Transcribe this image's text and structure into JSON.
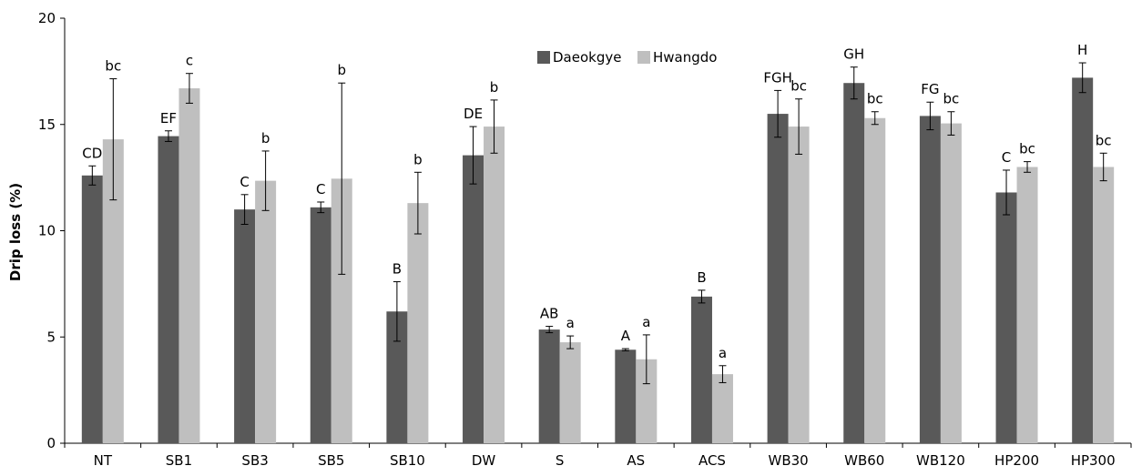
{
  "chart_data": {
    "type": "bar",
    "title": "",
    "xlabel": "",
    "ylabel": "Drip loss (%)",
    "ylim": [
      0,
      20
    ],
    "yticks": [
      0,
      5,
      10,
      15,
      20
    ],
    "grid": false,
    "legend_position": "top-center",
    "categories": [
      "NT",
      "SB1",
      "SB3",
      "SB5",
      "SB10",
      "DW",
      "S",
      "AS",
      "ACS",
      "WB30",
      "WB60",
      "WB120",
      "HP200",
      "HP300"
    ],
    "series": [
      {
        "name": "Daeokgye",
        "color": "#595959",
        "values": [
          12.6,
          14.45,
          11.0,
          11.1,
          6.2,
          13.55,
          5.35,
          4.4,
          6.9,
          15.5,
          16.95,
          15.4,
          11.8,
          17.2
        ],
        "errors": [
          0.45,
          0.25,
          0.7,
          0.25,
          1.4,
          1.35,
          0.15,
          0.05,
          0.3,
          1.1,
          0.75,
          0.65,
          1.05,
          0.7
        ],
        "labels": [
          "CD",
          "EF",
          "C",
          "C",
          "B",
          "DE",
          "AB",
          "A",
          "B",
          "FGH",
          "GH",
          "FG",
          "C",
          "H"
        ]
      },
      {
        "name": "Hwangdo",
        "color": "#bfbfbf",
        "values": [
          14.3,
          16.7,
          12.35,
          12.45,
          11.3,
          14.9,
          4.75,
          3.95,
          3.25,
          14.9,
          15.3,
          15.05,
          13.0,
          13.0
        ],
        "errors": [
          2.85,
          0.7,
          1.4,
          4.5,
          1.45,
          1.25,
          0.3,
          1.15,
          0.4,
          1.3,
          0.3,
          0.55,
          0.25,
          0.65
        ],
        "labels": [
          "bc",
          "c",
          "b",
          "b",
          "b",
          "b",
          "a",
          "a",
          "a",
          "bc",
          "bc",
          "bc",
          "bc",
          "bc"
        ]
      }
    ]
  }
}
